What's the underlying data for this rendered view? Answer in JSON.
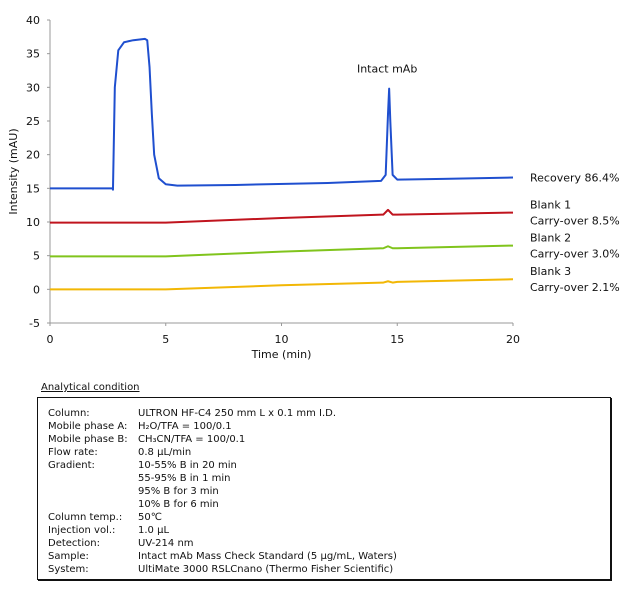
{
  "chart_data": {
    "type": "line",
    "xlabel": "Time (min)",
    "ylabel": "Intensity (mAU)",
    "xlim": [
      0,
      20
    ],
    "ylim": [
      -5,
      40
    ],
    "xticks": [
      "0",
      "5",
      "10",
      "15",
      "20"
    ],
    "yticks": [
      "-5",
      "0",
      "5",
      "10",
      "15",
      "20",
      "25",
      "30",
      "35",
      "40"
    ],
    "annotations": [
      {
        "text": "Intact mAb",
        "x": 14.65,
        "y": 29.8
      }
    ],
    "series": [
      {
        "name": "Recovery  86.4%",
        "label_lines": [
          "Recovery  86.4%"
        ],
        "color": "#1f4fcf",
        "x": [
          0,
          2.7,
          2.72,
          2.8,
          2.95,
          3.2,
          3.6,
          4.1,
          4.2,
          4.3,
          4.4,
          4.5,
          4.7,
          5.0,
          5.5,
          8,
          12,
          14.3,
          14.5,
          14.6,
          14.65,
          14.7,
          14.8,
          15,
          17,
          20
        ],
        "y": [
          15,
          15,
          14.8,
          30,
          35.5,
          36.7,
          37,
          37.2,
          37,
          33,
          26,
          20,
          16.5,
          15.6,
          15.4,
          15.5,
          15.8,
          16.1,
          17,
          26,
          29.8,
          25,
          17,
          16.3,
          16.4,
          16.6
        ]
      },
      {
        "name": "Blank 1 Carry-over 8.5%",
        "label_lines": [
          "Blank 1",
          "Carry-over 8.5%"
        ],
        "color": "#c0141e",
        "x": [
          0,
          5,
          10,
          14.4,
          14.6,
          14.8,
          15,
          20
        ],
        "y": [
          9.9,
          9.9,
          10.6,
          11.1,
          11.8,
          11.1,
          11.1,
          11.4
        ]
      },
      {
        "name": "Blank 2 Carry-over 3.0%",
        "label_lines": [
          "Blank 2",
          "Carry-over 3.0%"
        ],
        "color": "#80c41c",
        "x": [
          0,
          5,
          10,
          14.4,
          14.6,
          14.8,
          15,
          20
        ],
        "y": [
          4.9,
          4.9,
          5.6,
          6.1,
          6.4,
          6.1,
          6.1,
          6.5
        ]
      },
      {
        "name": "Blank 3 Carry-over 2.1%",
        "label_lines": [
          "Blank 3",
          "Carry-over 2.1%"
        ],
        "color": "#f2b705",
        "x": [
          0,
          5,
          10,
          14.4,
          14.6,
          14.8,
          15,
          20
        ],
        "y": [
          0,
          0,
          0.6,
          1.0,
          1.2,
          1.0,
          1.1,
          1.5
        ]
      }
    ]
  },
  "condition": {
    "title": "Analytical condition",
    "rows": [
      {
        "label": "Column:",
        "value": "ULTRON HF-C4  250 mm L x 0.1 mm I.D."
      },
      {
        "label": "Mobile phase A:",
        "value": "H₂O/TFA = 100/0.1"
      },
      {
        "label": "Mobile phase B:",
        "value": "CH₃CN/TFA = 100/0.1"
      },
      {
        "label": "Flow rate:",
        "value": "0.8 μL/min"
      },
      {
        "label": "Gradient:",
        "value": "10-55% B in 20 min"
      },
      {
        "label": "",
        "value": "55-95% B in 1 min"
      },
      {
        "label": "",
        "value": "95% B for 3 min"
      },
      {
        "label": "",
        "value": "10% B for 6 min"
      },
      {
        "label": "Column temp.:",
        "value": "50℃"
      },
      {
        "label": "Injection vol.:",
        "value": "1.0 μL"
      },
      {
        "label": "Detection:",
        "value": "UV-214 nm"
      },
      {
        "label": "Sample:",
        "value": "Intact mAb Mass Check Standard (5 μg/mL, Waters)"
      },
      {
        "label": "System:",
        "value": "UltiMate 3000 RSLCnano (Thermo Fisher Scientific)"
      }
    ]
  }
}
